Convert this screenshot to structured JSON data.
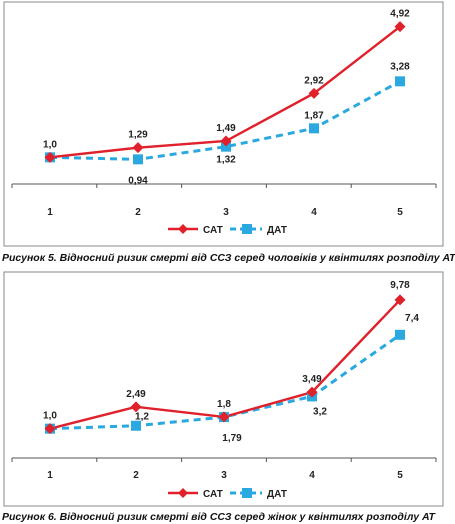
{
  "chart_data": [
    {
      "type": "line",
      "categories": [
        "1",
        "2",
        "3",
        "4",
        "5"
      ],
      "series": [
        {
          "name": "САТ",
          "values": [
            1.0,
            1.29,
            1.49,
            2.92,
            4.92
          ],
          "labels": [
            "1,0",
            "1,29",
            "1,49",
            "2,92",
            "4,92"
          ],
          "color": "#e0202a",
          "marker": "diamond",
          "line_style": "solid"
        },
        {
          "name": "ДАТ",
          "values": [
            1.0,
            0.94,
            1.32,
            1.87,
            3.28
          ],
          "labels": [
            "",
            "0,94",
            "1,32",
            "1,87",
            "3,28"
          ],
          "color": "#29a9e0",
          "marker": "square",
          "line_style": "dashed"
        }
      ],
      "ylim": [
        0.2,
        5.3
      ],
      "grid": false,
      "legend_position": "bottom",
      "caption": "Рисунок 5. Відносний ризик смерті від ССЗ серед чоловіків у квінтилях розподілу АТ"
    },
    {
      "type": "line",
      "categories": [
        "1",
        "2",
        "3",
        "4",
        "5"
      ],
      "series": [
        {
          "name": "САТ",
          "values": [
            1.0,
            2.49,
            1.8,
            3.49,
            9.78
          ],
          "labels": [
            "1,0",
            "2,49",
            "1,8",
            "3,49",
            "9,78"
          ],
          "color": "#e0202a",
          "marker": "diamond",
          "line_style": "solid"
        },
        {
          "name": "ДАТ",
          "values": [
            1.0,
            1.2,
            1.79,
            3.2,
            7.4
          ],
          "labels": [
            "",
            "1,2",
            "1,79",
            "3,2",
            "7,4"
          ],
          "color": "#29a9e0",
          "marker": "square",
          "line_style": "dashed"
        }
      ],
      "ylim": [
        -1.0,
        11.0
      ],
      "grid": false,
      "legend_position": "bottom",
      "caption": "Рисунок 6. Відносний ризик смерті від ССЗ серед жінок у квінтилях розподілу АТ"
    }
  ]
}
